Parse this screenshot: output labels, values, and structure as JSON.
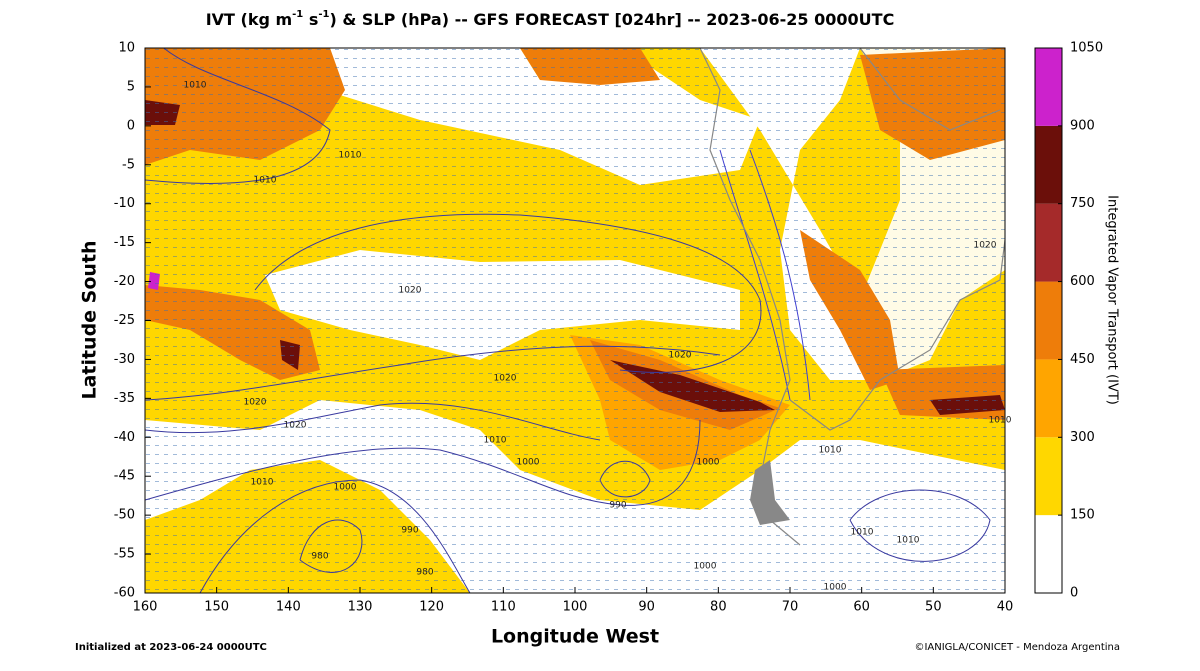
{
  "map": {
    "title": {
      "parts": [
        "IVT (kg m",
        "-1",
        " s",
        "-1",
        ") & SLP (hPa) -- GFS FORECAST [024hr] -- 2023-06-25 0000UTC"
      ]
    },
    "xlabel": "Longitude West",
    "ylabel": "Latitude South",
    "xlim": [
      160,
      40
    ],
    "xticks": [
      160,
      150,
      140,
      130,
      120,
      110,
      100,
      90,
      80,
      70,
      60,
      50,
      40
    ],
    "ylim": [
      -60,
      10
    ],
    "yticks": [
      -60,
      -55,
      -50,
      -45,
      -40,
      -35,
      -30,
      -25,
      -20,
      -15,
      -10,
      -5,
      0,
      5,
      10
    ],
    "colorbar": {
      "label": "Integrated Vapor Transport (IVT)",
      "levels": [
        0,
        150,
        300,
        450,
        600,
        750,
        900,
        1050
      ],
      "colors": [
        "#ffffff",
        "#ffd700",
        "#ffa500",
        "#ee7d0a",
        "#a52a2a",
        "#6b0f0a",
        "#cc22cc"
      ]
    },
    "contour_labels": [
      "1010",
      "1010",
      "1010",
      "1020",
      "1020",
      "1020",
      "1020",
      "1020",
      "1010",
      "1000",
      "1000",
      "990",
      "980",
      "980",
      "990",
      "1000",
      "1000",
      "1010",
      "1010",
      "1010",
      "1000",
      "1010",
      "1010",
      "1020"
    ],
    "initialized": "Initialized at 2023-06-24 0000UTC",
    "credit": "©IANIGLA/CONICET - Mendoza Argentina"
  }
}
